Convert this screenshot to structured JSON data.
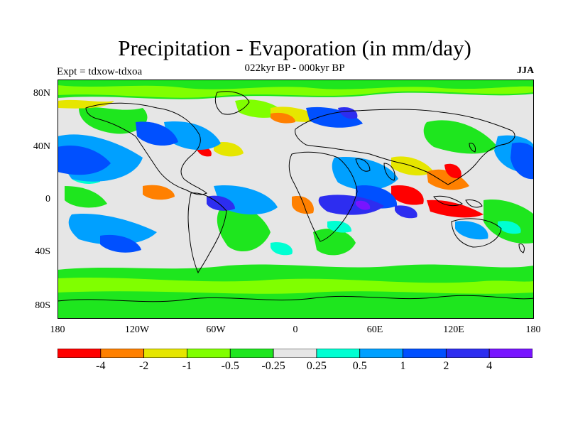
{
  "header": {
    "title": "Precipitation - Evaporation (in mm/day)",
    "subtitle": "022kyr BP - 000kyr BP",
    "left_label": "Expt = tdxow-tdxoa",
    "right_label": "JJA"
  },
  "map": {
    "lat_labels": [
      "80N",
      "40N",
      "0",
      "40S",
      "80S"
    ],
    "lon_labels": [
      "180",
      "120W",
      "60W",
      "0",
      "60E",
      "120E",
      "180"
    ],
    "background_color": "#e6e6e6",
    "frame_color": "#000000"
  },
  "colorbar": {
    "colors": [
      "#ff0000",
      "#ff8000",
      "#e6e600",
      "#80ff00",
      "#1ee61e",
      "#e6e6e6",
      "#00ffd2",
      "#00a0ff",
      "#0050ff",
      "#2d2df0",
      "#7814ff"
    ],
    "labels": [
      "-4",
      "-2",
      "-1",
      "-0.5",
      "-0.25",
      "0.25",
      "0.5",
      "1",
      "2",
      "4"
    ]
  }
}
